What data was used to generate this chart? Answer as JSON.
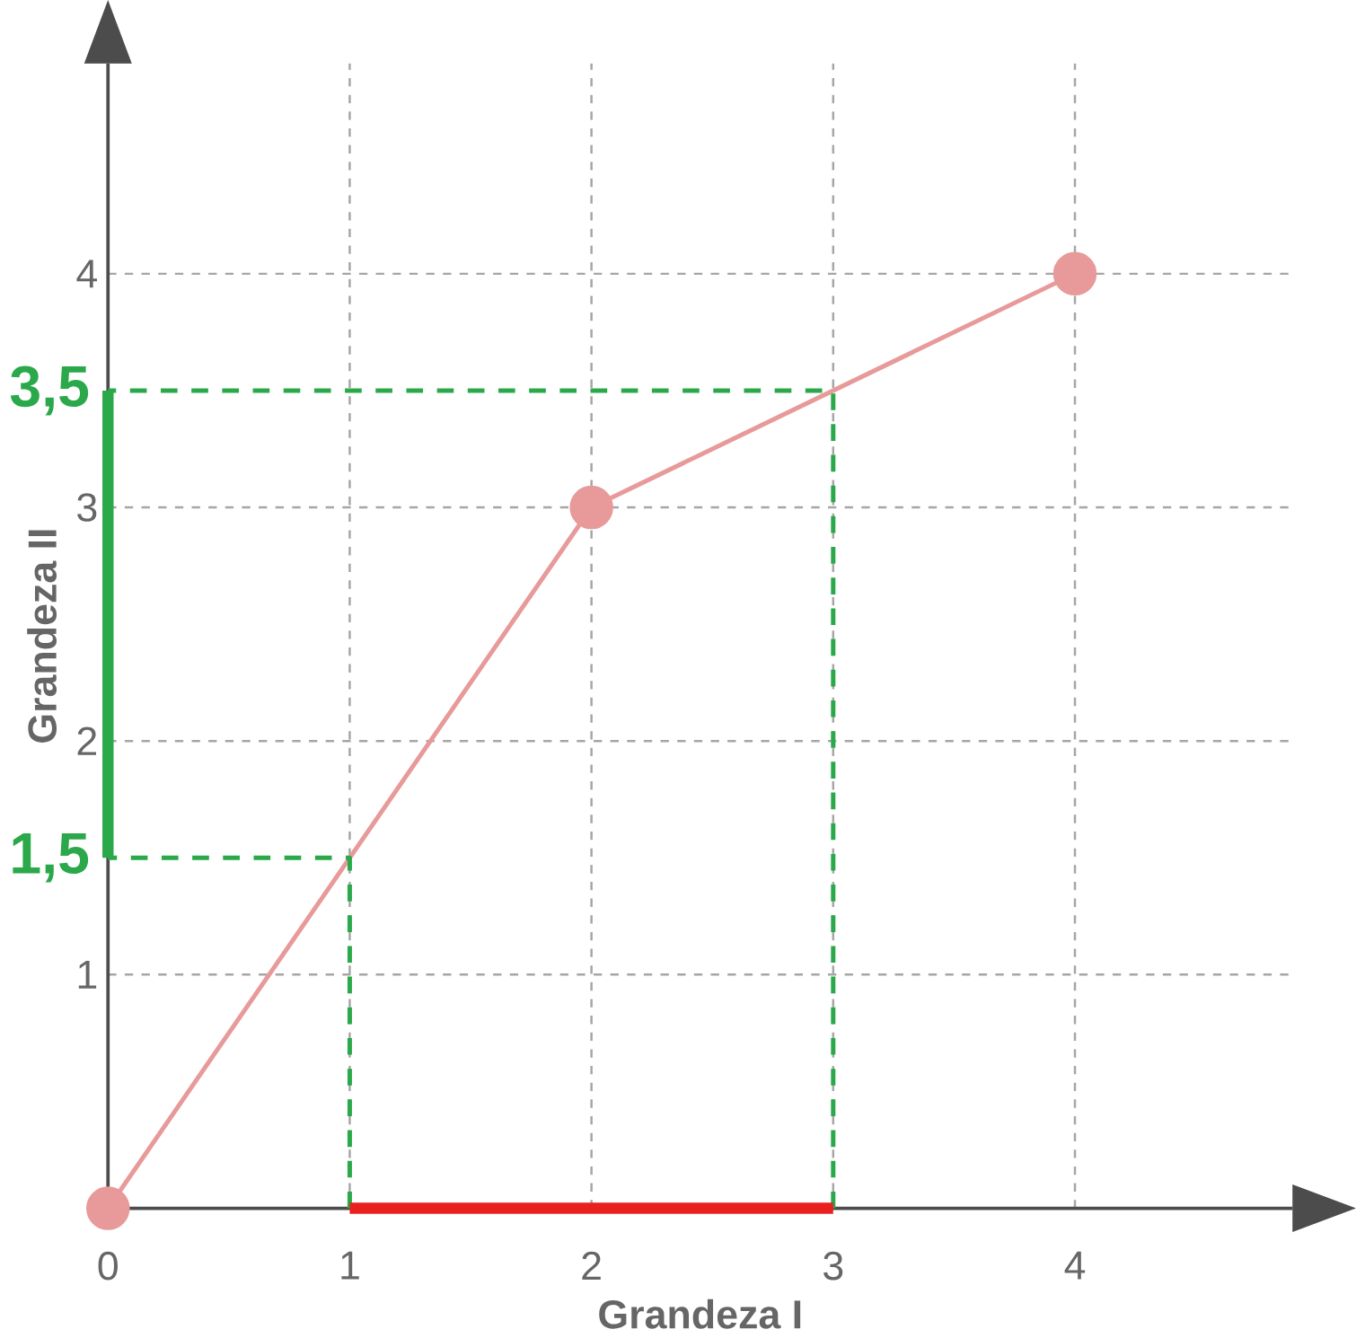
{
  "chart_data": {
    "type": "line",
    "xlabel": "Grandeza I",
    "ylabel": "Grandeza II",
    "xlim": [
      0,
      4.9
    ],
    "ylim": [
      0,
      4.9
    ],
    "xticks": [
      0,
      1,
      2,
      3,
      4
    ],
    "yticks": [
      1,
      2,
      3,
      4
    ],
    "grid": true,
    "marker": "none",
    "line_style": "solid",
    "series": [
      {
        "color": "#e89a9a",
        "x": [
          0,
          2,
          4
        ],
        "values": [
          0,
          3,
          4
        ],
        "marker": "circle"
      },
      {
        "color": "#2aa84a",
        "x": [
          1,
          1,
          0
        ],
        "values": [
          0,
          1.5,
          1.5
        ],
        "line_style": "dashed"
      },
      {
        "color": "#2aa84a",
        "x": [
          3,
          3,
          0
        ],
        "values": [
          0,
          3.5,
          3.5
        ],
        "line_style": "dashed"
      },
      {
        "color": "#2aa84a",
        "x": [
          0,
          0
        ],
        "values": [
          1.5,
          3.5
        ]
      },
      {
        "color": "#e8201e",
        "x": [
          1,
          3
        ],
        "values": [
          0,
          0
        ]
      }
    ],
    "annotations": [
      {
        "text": "1,5",
        "x": 0,
        "y": 1.5
      },
      {
        "text": "3,5",
        "x": 0,
        "y": 3.5
      }
    ]
  }
}
